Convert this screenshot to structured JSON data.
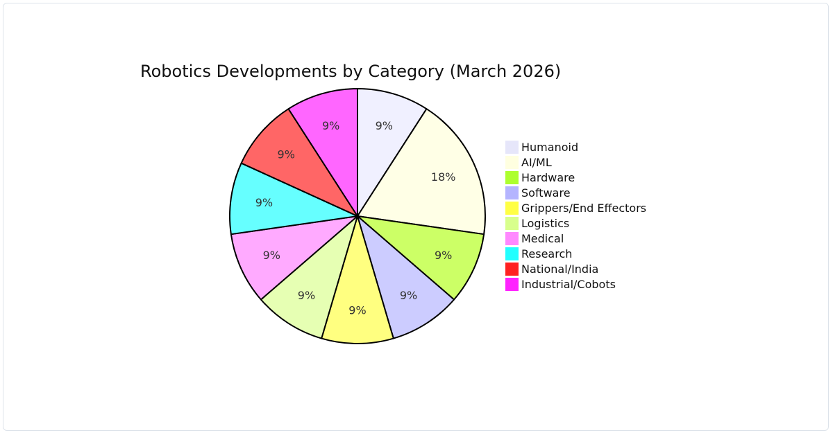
{
  "chart_data": {
    "type": "pie",
    "title": "Robotics Developments by Category (March 2026)",
    "legend_position": "right",
    "categories": [
      "Humanoid",
      "AI/ML",
      "Hardware",
      "Software",
      "Grippers/End Effectors",
      "Logistics",
      "Medical",
      "Research",
      "National/India",
      "Industrial/Cobots"
    ],
    "values": [
      1,
      2,
      1,
      1,
      1,
      1,
      1,
      1,
      1,
      1
    ],
    "slice_labels": [
      "9%",
      "18%",
      "9%",
      "9%",
      "9%",
      "9%",
      "9%",
      "9%",
      "9%",
      "9%"
    ],
    "slice_colors": [
      "#f0f0ff",
      "#ffffe6",
      "#ccff66",
      "#ccccff",
      "#ffff80",
      "#e6ffb3",
      "#ffaaff",
      "#66ffff",
      "#ff6666",
      "#ff66ff"
    ],
    "legend_colors": [
      "#e6e6fa",
      "#ffffe0",
      "#adff2f",
      "#b4b4ff",
      "#ffff44",
      "#d8ff8c",
      "#ff88ff",
      "#22ffff",
      "#ff2222",
      "#ff22ff"
    ]
  }
}
